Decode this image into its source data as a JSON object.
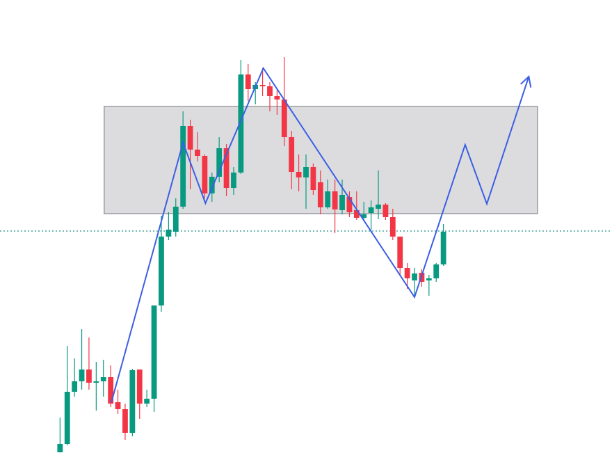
{
  "chart_data": {
    "type": "candlestick",
    "xlim": [
      -8.3,
      76.3
    ],
    "ylim": [
      0,
      651
    ],
    "up_color": "#089981",
    "down_color": "#f23645",
    "open": [
      1,
      13,
      88,
      103,
      120,
      101,
      103,
      109,
      73,
      63,
      29,
      120,
      71,
      78,
      212,
      311,
      318,
      354,
      470,
      436,
      427,
      373,
      397,
      438,
      381,
      403,
      544,
      523,
      529,
      527,
      513,
      508,
      454,
      404,
      396,
      411,
      389,
      353,
      376,
      349,
      368,
      349,
      338,
      345,
      351,
      357,
      339,
      311,
      266,
      248,
      259,
      248,
      251,
      271
    ],
    "high": [
      51,
      154,
      136,
      178,
      166,
      131,
      134,
      126,
      91,
      71,
      121,
      120,
      91,
      212,
      341,
      346,
      366,
      491,
      479,
      461,
      429,
      403,
      454,
      444,
      411,
      565,
      559,
      533,
      553,
      533,
      521,
      569,
      463,
      429,
      429,
      416,
      406,
      393,
      393,
      393,
      376,
      376,
      361,
      363,
      406,
      359,
      351,
      311,
      273,
      266,
      264,
      256,
      273,
      329
    ],
    "low": [
      1,
      11,
      81,
      91,
      91,
      61,
      81,
      66,
      56,
      19,
      24,
      49,
      66,
      59,
      203,
      306,
      311,
      351,
      379,
      419,
      366,
      361,
      389,
      369,
      371,
      401,
      506,
      501,
      513,
      491,
      486,
      441,
      379,
      376,
      351,
      371,
      343,
      351,
      316,
      343,
      339,
      335,
      333,
      321,
      336,
      335,
      306,
      256,
      236,
      226,
      239,
      226,
      246,
      269
    ],
    "close": [
      13,
      88,
      103,
      120,
      101,
      103,
      109,
      71,
      63,
      29,
      119,
      71,
      78,
      212,
      311,
      321,
      354,
      470,
      436,
      427,
      373,
      397,
      438,
      381,
      403,
      544,
      523,
      529,
      527,
      513,
      508,
      454,
      404,
      396,
      411,
      378,
      353,
      376,
      350,
      371,
      346,
      338,
      343,
      353,
      357,
      339,
      311,
      266,
      251,
      258,
      246,
      251,
      271,
      318
    ],
    "zone": {
      "x": [
        6.1,
        66
      ],
      "y": [
        344,
        498
      ],
      "fill": "#dcdcdf",
      "stroke": "#9a9ba1"
    },
    "level": {
      "y": 319,
      "color": "#1f8f86"
    },
    "zigzag": {
      "color": "#3b5fe3",
      "x": [
        7.1,
        17.0,
        20.1,
        28.1,
        49.0,
        56.0,
        59.0,
        64.8
      ],
      "y": [
        73,
        446,
        359,
        553,
        224,
        443,
        358,
        541
      ]
    }
  }
}
